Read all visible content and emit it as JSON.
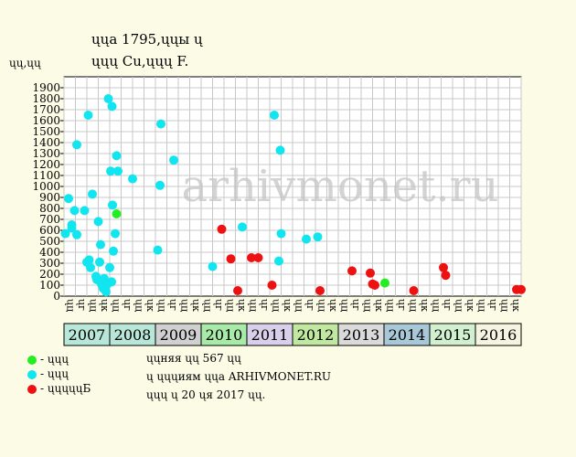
{
  "header": {
    "title_line1": "ųųа 1795,ųųы ų",
    "title_line2": "ųųų Cu,ųųų F."
  },
  "colors": {
    "background": "#fbfbe6",
    "plot_bg": "#ffffff",
    "grid": "#c8c8c8",
    "green": "#22ee22",
    "cyan": "#11e5f0",
    "red": "#ee1111"
  },
  "legend": [
    {
      "label": "- ųųų",
      "color": "#22ee22"
    },
    {
      "label": "- ųųų",
      "color": "#11e5f0"
    },
    {
      "label": "- ųųųųųБ",
      "color": "#ee1111"
    }
  ],
  "notes": [
    "ųųняя ųų 567 ųų",
    "ų ųųųиям ųųа ARHIVMONET.RU",
    "ųųų ų 20 ųя 2017 ųų."
  ],
  "watermark": "arhivmonet.ru",
  "chart_data": {
    "type": "scatter",
    "ylabel": "ųų,ųų",
    "ylim": [
      0,
      2000
    ],
    "yticks": [
      0,
      100,
      200,
      300,
      400,
      500,
      600,
      700,
      800,
      900,
      1000,
      1100,
      1200,
      1300,
      1400,
      1500,
      1600,
      1700,
      1800,
      1900
    ],
    "grid": true,
    "x_unit": "years",
    "xlim": [
      2007,
      2017
    ],
    "quarter_labels": [
      "ųц",
      "ųг",
      "ųц",
      "ųк"
    ],
    "years": [
      {
        "label": "2007",
        "color": "#b8e6d8"
      },
      {
        "label": "2008",
        "color": "#b8e6d8"
      },
      {
        "label": "2009",
        "color": "#d0d0d0"
      },
      {
        "label": "2010",
        "color": "#a8eaa8"
      },
      {
        "label": "2011",
        "color": "#d8d0ea"
      },
      {
        "label": "2012",
        "color": "#c0e8a0"
      },
      {
        "label": "2013",
        "color": "#dadada"
      },
      {
        "label": "2014",
        "color": "#a8c8d8"
      },
      {
        "label": "2015",
        "color": "#d0f0d0"
      },
      {
        "label": "2016",
        "color": "#f4f4e0"
      }
    ],
    "series": [
      {
        "color": "#22ee22",
        "points": [
          [
            2008.15,
            750
          ],
          [
            2014.02,
            120
          ]
        ]
      },
      {
        "color": "#11e5f0",
        "points": [
          [
            2007.03,
            570
          ],
          [
            2007.1,
            890
          ],
          [
            2007.17,
            650
          ],
          [
            2007.17,
            620
          ],
          [
            2007.23,
            780
          ],
          [
            2007.28,
            1380
          ],
          [
            2007.28,
            560
          ],
          [
            2007.45,
            780
          ],
          [
            2007.5,
            310
          ],
          [
            2007.53,
            1650
          ],
          [
            2007.55,
            330
          ],
          [
            2007.58,
            260
          ],
          [
            2007.62,
            930
          ],
          [
            2007.7,
            180
          ],
          [
            2007.72,
            150
          ],
          [
            2007.75,
            680
          ],
          [
            2007.78,
            310
          ],
          [
            2007.8,
            470
          ],
          [
            2007.82,
            110
          ],
          [
            2007.86,
            70
          ],
          [
            2007.88,
            160
          ],
          [
            2007.9,
            130
          ],
          [
            2007.92,
            40
          ],
          [
            2007.95,
            110
          ],
          [
            2007.97,
            1800
          ],
          [
            2008.0,
            260
          ],
          [
            2008.02,
            1140
          ],
          [
            2008.04,
            130
          ],
          [
            2008.05,
            1730
          ],
          [
            2008.06,
            830
          ],
          [
            2008.08,
            410
          ],
          [
            2008.12,
            570
          ],
          [
            2008.15,
            1280
          ],
          [
            2008.18,
            1140
          ],
          [
            2008.5,
            1070
          ],
          [
            2009.05,
            420
          ],
          [
            2009.1,
            1010
          ],
          [
            2009.12,
            1570
          ],
          [
            2009.4,
            1240
          ],
          [
            2010.25,
            270
          ],
          [
            2010.9,
            630
          ],
          [
            2011.6,
            1650
          ],
          [
            2011.7,
            320
          ],
          [
            2011.73,
            1330
          ],
          [
            2011.75,
            570
          ],
          [
            2012.3,
            520
          ],
          [
            2012.55,
            540
          ]
        ]
      },
      {
        "color": "#ee1111",
        "points": [
          [
            2010.45,
            610
          ],
          [
            2010.65,
            340
          ],
          [
            2010.8,
            50
          ],
          [
            2011.1,
            350
          ],
          [
            2011.25,
            350
          ],
          [
            2011.55,
            100
          ],
          [
            2012.6,
            50
          ],
          [
            2013.3,
            230
          ],
          [
            2013.7,
            210
          ],
          [
            2013.75,
            110
          ],
          [
            2013.8,
            100
          ],
          [
            2014.65,
            50
          ],
          [
            2015.3,
            260
          ],
          [
            2015.35,
            190
          ],
          [
            2016.9,
            60
          ],
          [
            2017.0,
            60
          ]
        ]
      }
    ]
  }
}
